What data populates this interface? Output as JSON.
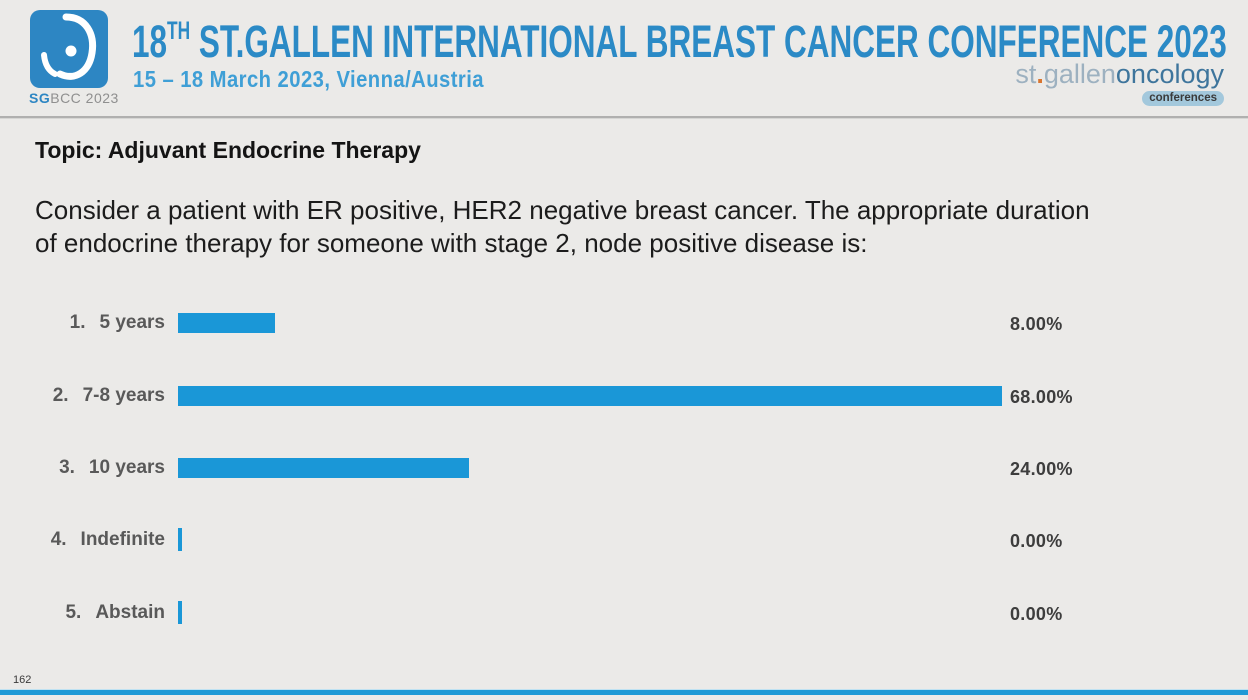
{
  "header": {
    "logo": {
      "caption_bold": "SG",
      "caption_rest": "BCC 2023"
    },
    "title": {
      "number": "18",
      "ordinal": "TH",
      "rest": " ST.GALLEN INTERNATIONAL BREAST CANCER CONFERENCE 2023"
    },
    "subtitle": "15 – 18 March 2023, Vienna/Austria",
    "right_logo": {
      "st": "st",
      "dot": ".",
      "gallen": "gallen",
      "oncology": "oncology",
      "conferences": "conferences"
    }
  },
  "topic": "Topic: Adjuvant Endocrine Therapy",
  "question": {
    "lines": [
      "Consider a patient with ER positive, HER2 negative breast cancer. The appropriate duration",
      "of endocrine therapy for someone with stage 2, node positive disease is:"
    ]
  },
  "chart_data": {
    "type": "bar",
    "orientation": "horizontal",
    "option_numbers": [
      "1.",
      "2.",
      "3.",
      "4.",
      "5."
    ],
    "categories": [
      "5 years",
      "7-8 years",
      "10 years",
      "Indefinite",
      "Abstain"
    ],
    "values": [
      8,
      68,
      24,
      0,
      0
    ],
    "value_labels": [
      "8.00%",
      "68.00%",
      "24.00%",
      "0.00%",
      "0.00%"
    ],
    "unit": "percent",
    "xlim": [
      0,
      68
    ],
    "grid": false,
    "legend": false,
    "bar_color": "#1a97d7",
    "label_color": "#595959",
    "value_label_color": "#3d3d3d"
  },
  "footer": {
    "page_number": "162"
  },
  "colors": {
    "title_blue": "#2b8ac6",
    "subtitle_blue": "#3f9fd6",
    "logo_blue": "#2d86c3",
    "accent_orange": "#d9752f",
    "bottom_bar_blue": "#1e9ad6",
    "background": "#ebeae8"
  }
}
